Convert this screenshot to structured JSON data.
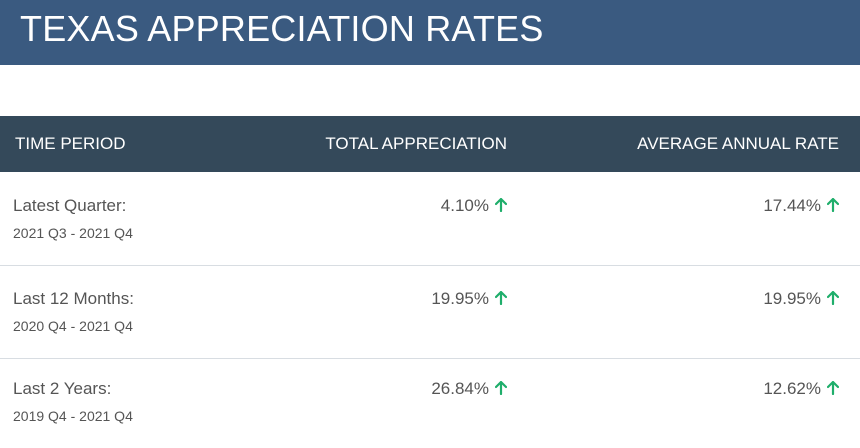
{
  "title": "TEXAS APPRECIATION RATES",
  "table": {
    "headers": [
      "TIME PERIOD",
      "TOTAL APPRECIATION",
      "AVERAGE ANNUAL RATE"
    ],
    "rows": [
      {
        "label": "Latest Quarter:",
        "range": "2021 Q3 - 2021 Q4",
        "total": "4.10%",
        "annual": "17.44%"
      },
      {
        "label": "Last 12 Months:",
        "range": "2020 Q4 - 2021 Q4",
        "total": "19.95%",
        "annual": "19.95%"
      },
      {
        "label": "Last 2 Years:",
        "range": "2019 Q4 - 2021 Q4",
        "total": "26.84%",
        "annual": "12.62%"
      }
    ]
  },
  "icons": {
    "trend": "arrow-up-icon"
  },
  "colors": {
    "title_bg": "#3a5a80",
    "header_bg": "#34495a",
    "up_arrow": "#1fae6b",
    "text": "#555555"
  }
}
